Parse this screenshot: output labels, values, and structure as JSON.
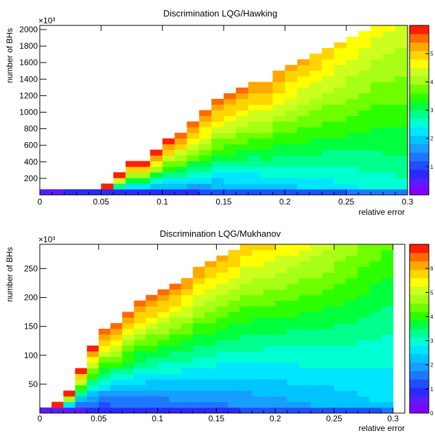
{
  "chart_data": [
    {
      "type": "heatmap",
      "title": "Discrimination LQG/Hawking",
      "xlabel": "relative error",
      "ylabel": "number of BHs",
      "y_multiplier": "×10³",
      "xlim": [
        0,
        0.3
      ],
      "ylim": [
        0,
        2050
      ],
      "x_ticks": [
        "0",
        "0.05",
        "0.1",
        "0.15",
        "0.2",
        "0.25",
        "0.3"
      ],
      "x_tick_values": [
        0,
        0.05,
        0.1,
        0.15,
        0.2,
        0.25,
        0.3
      ],
      "y_ticks": [
        "200",
        "400",
        "600",
        "800",
        "1000",
        "1200",
        "1400",
        "1600",
        "1800",
        "2000"
      ],
      "y_tick_values": [
        200,
        400,
        600,
        800,
        1000,
        1200,
        1400,
        1600,
        1800,
        2000
      ],
      "colorbar_ticks": [
        "1",
        "2",
        "3",
        "4",
        "5"
      ],
      "zlim": [
        0,
        6
      ],
      "x_bins": 30,
      "y_bins": 30,
      "boundary_top": [
        22,
        22,
        55,
        55,
        90,
        170,
        260,
        380,
        430,
        520,
        660,
        760,
        880,
        1030,
        1130,
        1200,
        1280,
        1350,
        1400,
        1480,
        1570,
        1640,
        1700,
        1760,
        1840,
        1920,
        1990,
        2050,
        2050,
        2050
      ],
      "value_profile": {
        "floor_level": 0.5,
        "floor_grow": 2.0,
        "top_level": 5.9,
        "top_drop": 1.5,
        "exponent": 0.9,
        "bottom_band": 0.18
      }
    },
    {
      "type": "heatmap",
      "title": "Discrimination LQG/Mukhanov",
      "xlabel": "relative error",
      "ylabel": "number of BHs",
      "y_multiplier": "×10³",
      "xlim": [
        0,
        0.31
      ],
      "ylim": [
        0,
        292
      ],
      "x_ticks": [
        "0",
        "0.05",
        "0.1",
        "0.15",
        "0.2",
        "0.25",
        "0.3"
      ],
      "x_tick_values": [
        0,
        0.05,
        0.1,
        0.15,
        0.2,
        0.25,
        0.3
      ],
      "y_ticks": [
        "50",
        "100",
        "150",
        "200",
        "250"
      ],
      "y_tick_values": [
        50,
        100,
        150,
        200,
        250
      ],
      "colorbar_ticks": [
        "0",
        "1",
        "2",
        "3",
        "4",
        "5",
        "6"
      ],
      "zlim": [
        0,
        7
      ],
      "x_bins": 30,
      "y_bins": 30,
      "boundary_top": [
        8,
        21,
        36,
        80,
        112,
        143,
        160,
        180,
        195,
        208,
        218,
        228,
        238,
        250,
        262,
        272,
        282,
        290,
        292,
        292,
        292,
        292,
        292,
        292,
        292,
        292,
        292,
        292,
        292,
        292
      ],
      "value_profile": {
        "floor_level": 0.8,
        "floor_grow": 1.6,
        "top_level": 6.7,
        "top_drop": 2.5,
        "exponent": 1.1,
        "bottom_band": 0.2
      }
    }
  ]
}
